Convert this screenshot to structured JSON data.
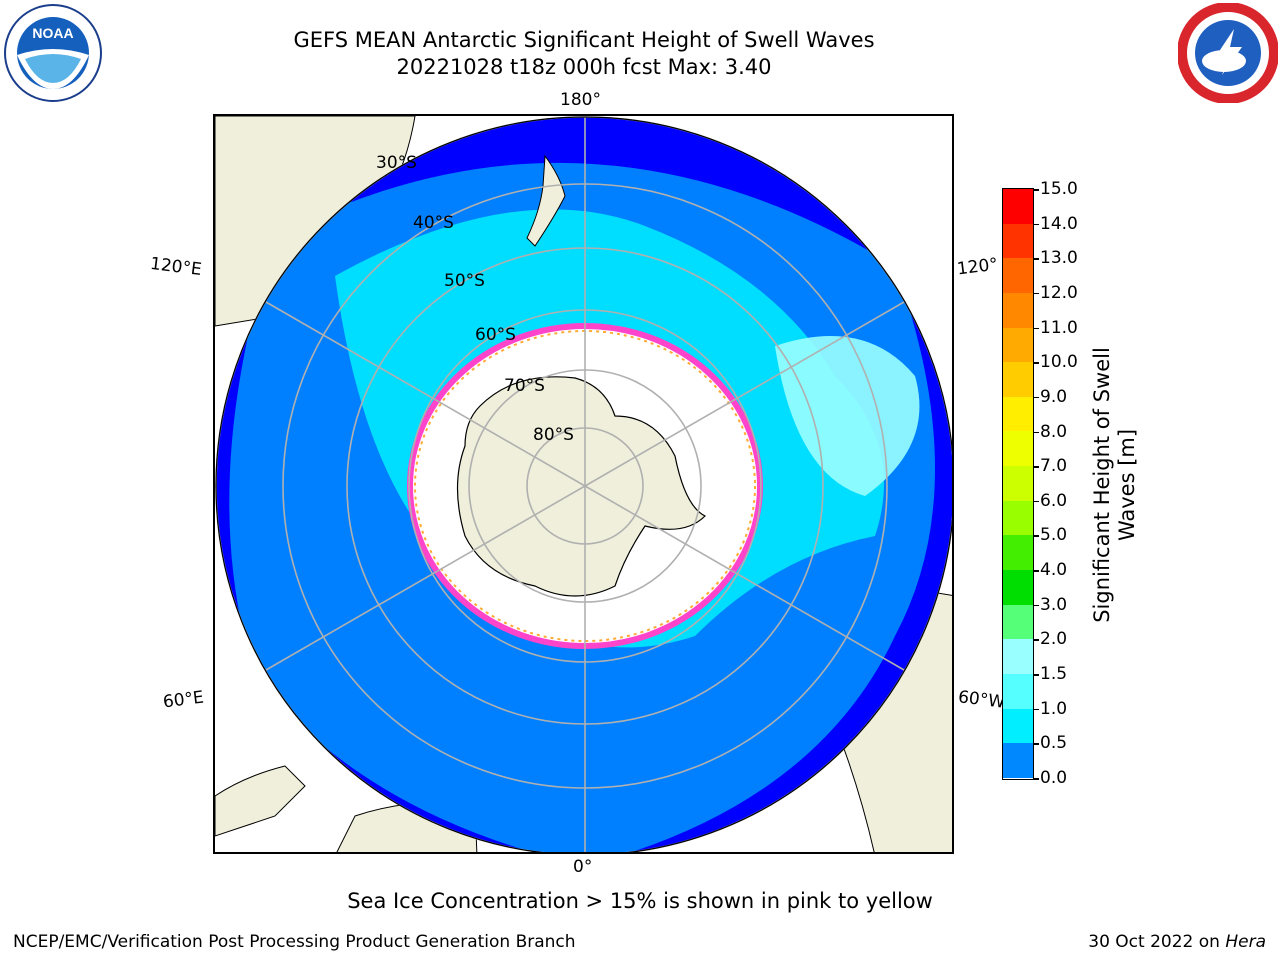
{
  "title_line1": "GEFS MEAN Antarctic Significant Height of Swell Waves",
  "title_line2": "20221028 t18z 000h fcst   Max: 3.40",
  "logos": {
    "left": "noaa-logo",
    "right": "nws-logo"
  },
  "map": {
    "projection": "south-polar-stereographic",
    "longitude_labels": [
      "180°",
      "120°E",
      "120°",
      "60°E",
      "60°W",
      "0°"
    ],
    "latitude_labels": [
      "30°S",
      "40°S",
      "50°S",
      "60°S",
      "70°S",
      "80°S"
    ],
    "colors": {
      "land": "#efefdb",
      "ocean_low": "#0000ff",
      "ocean_mid": "#0080ff",
      "ice": "#ffffff",
      "ice_edge": "#ff44cc"
    }
  },
  "colorbar": {
    "label_line1": "Significant Height of Swell",
    "label_line2": "Waves [m]",
    "ticks": [
      "15.0",
      "14.0",
      "13.0",
      "12.0",
      "11.0",
      "10.0",
      "9.0",
      "8.0",
      "7.0",
      "6.0",
      "5.0",
      "4.0",
      "3.0",
      "2.0",
      "1.5",
      "1.0",
      "0.5",
      "0.0"
    ],
    "colors_top_to_bottom": [
      "#ff0000",
      "#ff3300",
      "#ff6600",
      "#ff8800",
      "#ffaa00",
      "#ffcc00",
      "#ffee00",
      "#eeff00",
      "#ccff00",
      "#99ff00",
      "#44ee00",
      "#00dd00",
      "#55ff77",
      "#99ffff",
      "#55ffff",
      "#00eeff",
      "#0088ff",
      "#0000ff"
    ]
  },
  "sea_ice_note": "Sea Ice Concentration > 15% is shown in pink to yellow",
  "credit": "NCEP/EMC/Verification Post Processing Product Generation Branch",
  "date_prefix": "30 Oct 2022 on ",
  "date_machine": "Hera"
}
